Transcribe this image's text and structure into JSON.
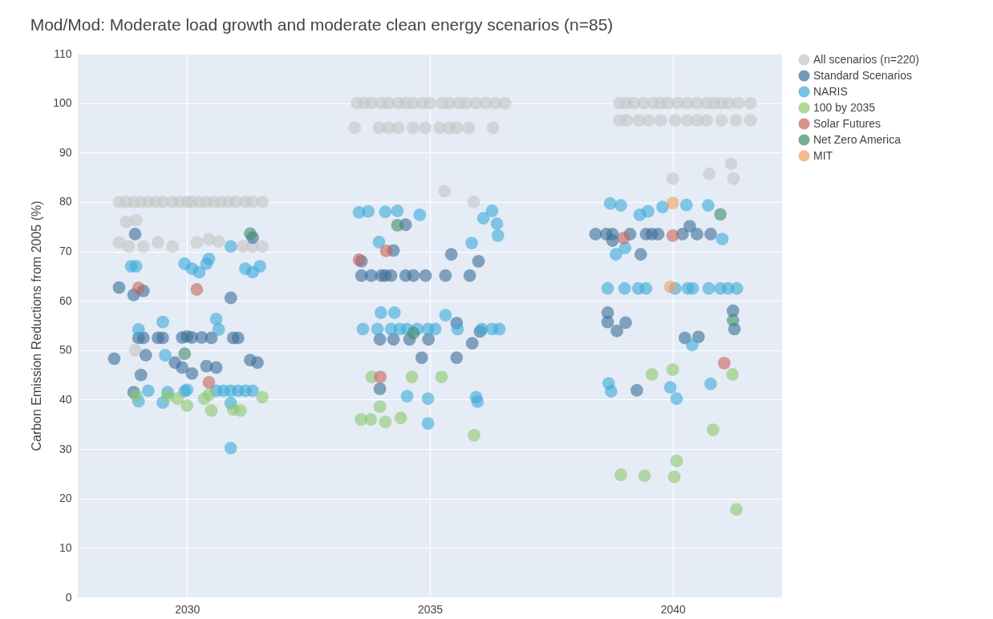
{
  "chart_data": {
    "type": "scatter",
    "title": "Mod/Mod: Moderate load growth and moderate clean energy scenarios (n=85)",
    "ylabel": "Carbon Emission Reductions from 2005 (%)",
    "xlim": [
      2027.75,
      2042.25
    ],
    "xticks": [
      2030,
      2035,
      2040
    ],
    "ylim": [
      0,
      110
    ],
    "yticks": [
      0,
      10,
      20,
      30,
      40,
      50,
      60,
      70,
      80,
      90,
      100,
      110
    ],
    "grid": true,
    "legend": "top right",
    "marker": "circle",
    "series": [
      {
        "name": "All scenarios (n=220)",
        "color": "#c4c4c4",
        "x": [
          2028.6,
          2028.75,
          2028.9,
          2029.05,
          2029.2,
          2029.35,
          2029.5,
          2029.7,
          2029.85,
          2030.0,
          2030.1,
          2030.25,
          2030.4,
          2030.55,
          2030.7,
          2030.85,
          2031.0,
          2031.2,
          2031.35,
          2031.55,
          2028.75,
          2028.95,
          2028.6,
          2028.8,
          2029.1,
          2029.4,
          2029.7,
          2030.2,
          2030.45,
          2030.65,
          2031.15,
          2031.35,
          2031.55,
          2028.93,
          2029.37,
          2033.5,
          2033.65,
          2033.8,
          2034.0,
          2034.15,
          2034.35,
          2034.5,
          2034.65,
          2034.85,
          2035.0,
          2035.25,
          2035.4,
          2035.6,
          2035.75,
          2035.95,
          2036.15,
          2036.35,
          2036.55,
          2033.45,
          2033.95,
          2034.15,
          2034.35,
          2034.65,
          2034.9,
          2035.2,
          2035.4,
          2035.55,
          2035.8,
          2036.3,
          2035.3,
          2035.9,
          2038.9,
          2039.05,
          2039.2,
          2039.4,
          2039.6,
          2039.75,
          2039.9,
          2040.1,
          2040.3,
          2040.5,
          2040.7,
          2040.85,
          2041.0,
          2041.15,
          2041.35,
          2041.6,
          2038.9,
          2039.05,
          2039.3,
          2039.5,
          2039.75,
          2040.05,
          2040.3,
          2040.5,
          2040.7,
          2041.0,
          2041.3,
          2041.6,
          2040.0,
          2040.75,
          2041.2,
          2041.25
        ],
        "values": [
          80,
          80,
          80,
          80,
          80,
          80,
          80,
          80,
          80,
          80,
          80,
          80,
          80,
          80,
          80,
          80,
          80,
          80,
          80,
          80,
          76,
          76.3,
          71.8,
          71,
          71,
          71.8,
          71,
          71.8,
          72.5,
          72,
          71,
          71,
          71,
          50,
          null,
          100,
          100,
          100,
          100,
          100,
          100,
          100,
          100,
          100,
          100,
          100,
          100,
          100,
          100,
          100,
          100,
          100,
          100,
          95,
          95,
          95,
          95,
          95,
          95,
          95,
          95,
          95,
          95,
          95,
          82.2,
          80,
          100,
          100,
          100,
          100,
          100,
          100,
          100,
          100,
          100,
          100,
          100,
          100,
          100,
          100,
          100,
          100,
          96.5,
          96.5,
          96.5,
          96.5,
          96.5,
          96.5,
          96.5,
          96.5,
          96.5,
          96.5,
          96.5,
          96.5,
          84.7,
          85.7,
          87.7,
          84.7
        ]
      },
      {
        "name": "Standard Scenarios",
        "color": "#3a6e98",
        "x": [
          2028.6,
          2028.9,
          2028.93,
          2029.1,
          2028.5,
          2028.9,
          2029.05,
          2029.15,
          2029.0,
          2029.1,
          2029.4,
          2029.5,
          2029.75,
          2029.9,
          2030.0,
          2030.1,
          2030.3,
          2030.4,
          2030.1,
          2029.9,
          2030.6,
          2030.9,
          2030.95,
          2031.05,
          2031.3,
          2031.45,
          2031.35,
          2030.5,
          2033.59,
          2033.79,
          2034.0,
          2034.08,
          2034.2,
          2034.5,
          2034.66,
          2034.91,
          2035.32,
          2035.82,
          2033.59,
          2034.25,
          2034.5,
          2035.44,
          2036.0,
          2033.97,
          2034.25,
          2034.58,
          2034.97,
          2035.55,
          2035.87,
          2036.03,
          2034.83,
          2035.55,
          2033.97,
          2038.41,
          2038.63,
          2038.76,
          2039.12,
          2039.45,
          2039.57,
          2039.7,
          2040.2,
          2040.5,
          2040.78,
          2040.35,
          2038.76,
          2039.34,
          2038.66,
          2038.66,
          2038.85,
          2039.03,
          2040.25,
          2040.53,
          2041.24,
          2041.27,
          2039.26
        ],
        "values": [
          62.7,
          61.2,
          73.5,
          62,
          48.3,
          41.5,
          45,
          49,
          52.5,
          52.5,
          52.5,
          52.5,
          47.5,
          52.6,
          52.8,
          52.6,
          52.6,
          46.8,
          45.3,
          46.5,
          46.5,
          60.6,
          52.5,
          52.5,
          48,
          47.5,
          72.8,
          52.5,
          65.1,
          65.1,
          65.1,
          65.1,
          65.1,
          65.1,
          65.1,
          65.1,
          65.1,
          65.1,
          68,
          70.2,
          75.4,
          69.4,
          68,
          52.2,
          52.2,
          52.2,
          52.2,
          55.5,
          51.4,
          53.8,
          48.5,
          48.5,
          42.2,
          73.5,
          73.5,
          73.5,
          73.5,
          73.5,
          73.5,
          73.5,
          73.5,
          73.5,
          73.5,
          75.1,
          72.2,
          69.4,
          57.6,
          55.7,
          53.9,
          55.6,
          52.5,
          52.7,
          58,
          54.3,
          41.9
        ]
      },
      {
        "name": "NARIS",
        "color": "#3aaad8",
        "x": [
          2028.85,
          2028.95,
          2029.0,
          2029.5,
          2029.95,
          2030.1,
          2030.25,
          2030.45,
          2030.4,
          2030.6,
          2030.65,
          2030.9,
          2031.2,
          2031.35,
          2031.5,
          2029.0,
          2029.2,
          2029.5,
          2029.6,
          2029.55,
          2029.95,
          2030.0,
          2030.6,
          2030.75,
          2030.9,
          2031.05,
          2031.2,
          2031.35,
          2030.9,
          2030.9,
          2033.54,
          2033.73,
          2034.08,
          2034.33,
          2034.79,
          2036.28,
          2036.1,
          2036.38,
          2036.4,
          2035.86,
          2033.95,
          2033.62,
          2033.92,
          2034.2,
          2034.38,
          2034.53,
          2034.74,
          2034.96,
          2035.11,
          2035.57,
          2036.07,
          2036.28,
          2036.43,
          2033.99,
          2034.27,
          2035.32,
          2034.53,
          2034.96,
          2035.95,
          2035.98,
          2034.96,
          2038.71,
          2038.93,
          2039.32,
          2039.49,
          2039.79,
          2040.28,
          2040.73,
          2041.02,
          2038.83,
          2039.02,
          2038.66,
          2039.01,
          2039.29,
          2039.45,
          2040.05,
          2040.31,
          2040.41,
          2040.74,
          2040.98,
          2041.14,
          2041.32,
          2040.4,
          2038.68,
          2038.73,
          2039.95,
          2040.08,
          2040.78
        ],
        "values": [
          67,
          67,
          54.2,
          55.7,
          67.5,
          66.5,
          65.8,
          68.5,
          67.5,
          56.3,
          54.2,
          71,
          66.5,
          65.8,
          67,
          39.7,
          41.8,
          39.4,
          41.5,
          49,
          41.7,
          42,
          41.8,
          41.8,
          41.8,
          41.8,
          41.8,
          41.8,
          39.3,
          30.2,
          77.9,
          78.1,
          78,
          78.2,
          77.4,
          78.2,
          76.7,
          75.6,
          73.2,
          71.7,
          71.9,
          54.3,
          54.3,
          54.3,
          54.3,
          54.3,
          54.3,
          54.3,
          54.3,
          54.3,
          54.3,
          54.3,
          54.3,
          57.6,
          57.6,
          57.1,
          40.7,
          40.2,
          40.5,
          39.6,
          35.2,
          79.7,
          79.3,
          77.4,
          78.1,
          79,
          79.4,
          79.3,
          72.5,
          69.4,
          70.7,
          62.5,
          62.5,
          62.5,
          62.5,
          62.5,
          62.5,
          62.5,
          62.5,
          62.5,
          62.5,
          62.5,
          51.1,
          43.3,
          41.7,
          42.5,
          40.2,
          43.2
        ]
      },
      {
        "name": "100 by 2035",
        "color": "#8cc86e",
        "x": [
          2028.95,
          2029.6,
          2029.8,
          2030.0,
          2030.45,
          2030.5,
          2030.95,
          2031.1,
          2031.55,
          2030.35,
          2033.8,
          2034.63,
          2035.24,
          2033.97,
          2033.58,
          2033.78,
          2034.08,
          2034.4,
          2035.91,
          2039.57,
          2040.0,
          2041.23,
          2040.83,
          2040.08,
          2038.93,
          2039.42,
          2040.03,
          2041.31
        ],
        "values": [
          40.8,
          40.8,
          40.2,
          38.8,
          41,
          37.8,
          38,
          37.8,
          40.5,
          40.2,
          44.6,
          44.6,
          44.6,
          38.6,
          36,
          36,
          35.5,
          36.3,
          32.8,
          45.1,
          46.1,
          45.1,
          33.9,
          27.6,
          24.8,
          24.6,
          24.4,
          17.8
        ]
      },
      {
        "name": "Solar Futures",
        "color": "#c8625a",
        "x": [
          2029.0,
          2030.2,
          2030.45,
          2033.54,
          2034.1,
          2033.98,
          2038.99,
          2040.0,
          2041.06
        ],
        "values": [
          62.6,
          62.3,
          43.5,
          68.3,
          70.1,
          44.6,
          72.7,
          73.2,
          47.4
        ]
      },
      {
        "name": "Net Zero America",
        "color": "#3d8c68",
        "x": [
          2029.95,
          2031.3,
          2034.33,
          2034.66,
          2040.98,
          2041.24
        ],
        "values": [
          49.3,
          73.6,
          75.3,
          53.5,
          77.5,
          56.1
        ]
      },
      {
        "name": "MIT",
        "color": "#f0a060",
        "x": [
          2040.0,
          2039.95
        ],
        "values": [
          79.8,
          62.8
        ]
      }
    ]
  }
}
